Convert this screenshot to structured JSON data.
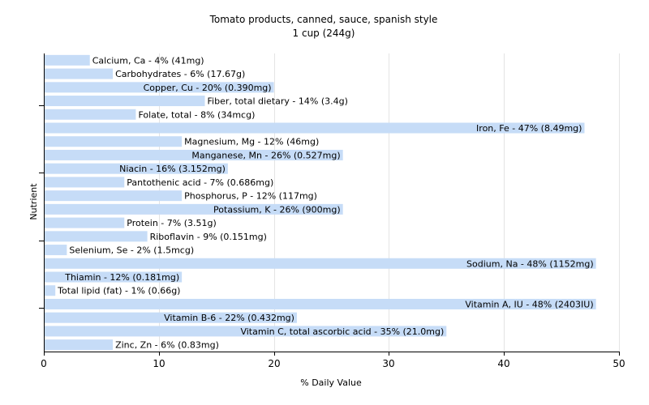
{
  "chart_data": {
    "type": "bar",
    "orientation": "horizontal",
    "title": "Tomato products, canned, sauce, spanish style",
    "subtitle": "1 cup (244g)",
    "xlabel": "% Daily Value",
    "ylabel": "Nutrient",
    "xlim": [
      0,
      50
    ],
    "xticks": [
      0,
      10,
      20,
      30,
      40,
      50
    ],
    "grid": true,
    "bar_color": "#c6dcf7",
    "grid_color": "#e4e4e4",
    "axis_color": "#000000",
    "bars": [
      {
        "label": "Calcium, Ca - 4% (41mg)",
        "value": 4
      },
      {
        "label": "Carbohydrates - 6% (17.67g)",
        "value": 6
      },
      {
        "label": "Copper, Cu - 20% (0.390mg)",
        "value": 20
      },
      {
        "label": "Fiber, total dietary - 14% (3.4g)",
        "value": 14
      },
      {
        "label": "Folate, total - 8% (34mcg)",
        "value": 8
      },
      {
        "label": "Iron, Fe - 47% (8.49mg)",
        "value": 47
      },
      {
        "label": "Magnesium, Mg - 12% (46mg)",
        "value": 12
      },
      {
        "label": "Manganese, Mn - 26% (0.527mg)",
        "value": 26
      },
      {
        "label": "Niacin - 16% (3.152mg)",
        "value": 16
      },
      {
        "label": "Pantothenic acid - 7% (0.686mg)",
        "value": 7
      },
      {
        "label": "Phosphorus, P - 12% (117mg)",
        "value": 12
      },
      {
        "label": "Potassium, K - 26% (900mg)",
        "value": 26
      },
      {
        "label": "Protein - 7% (3.51g)",
        "value": 7
      },
      {
        "label": "Riboflavin - 9% (0.151mg)",
        "value": 9
      },
      {
        "label": "Selenium, Se - 2% (1.5mcg)",
        "value": 2
      },
      {
        "label": "Sodium, Na - 48% (1152mg)",
        "value": 48
      },
      {
        "label": "Thiamin - 12% (0.181mg)",
        "value": 12
      },
      {
        "label": "Total lipid (fat) - 1% (0.66g)",
        "value": 1
      },
      {
        "label": "Vitamin A, IU - 48% (2403IU)",
        "value": 48
      },
      {
        "label": "Vitamin B-6 - 22% (0.432mg)",
        "value": 22
      },
      {
        "label": "Vitamin C, total ascorbic acid - 35% (21.0mg)",
        "value": 35
      },
      {
        "label": "Zinc, Zn - 6% (0.83mg)",
        "value": 6
      }
    ]
  }
}
